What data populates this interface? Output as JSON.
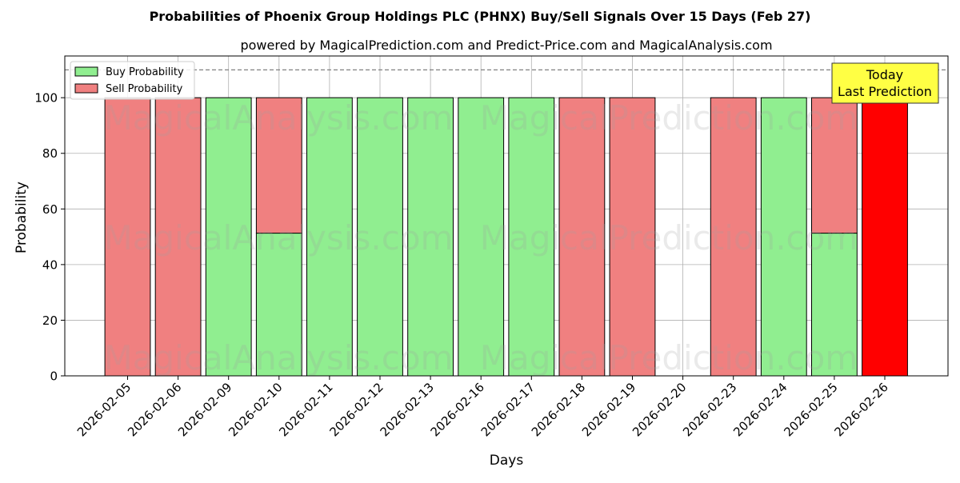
{
  "chart_data": {
    "type": "bar",
    "stacked": true,
    "title": "Probabilities of Phoenix Group Holdings PLC (PHNX) Buy/Sell Signals Over 15 Days (Feb 27)",
    "subtitle": "powered by MagicalPrediction.com and Predict-Price.com and MagicalAnalysis.com",
    "xlabel": "Days",
    "ylabel": "Probability",
    "ylim": [
      0,
      115
    ],
    "yticks": [
      0,
      20,
      40,
      60,
      80,
      100
    ],
    "grid": true,
    "legend_position": "top-left",
    "reference_line": 110,
    "categories": [
      "2026-02-05",
      "2026-02-06",
      "2026-02-09",
      "2026-02-10",
      "2026-02-11",
      "2026-02-12",
      "2026-02-13",
      "2026-02-16",
      "2026-02-17",
      "2026-02-18",
      "2026-02-19",
      "2026-02-20",
      "2026-02-23",
      "2026-02-24",
      "2026-02-25",
      "2026-02-26"
    ],
    "series": [
      {
        "name": "Buy Probability",
        "color": "#90ee90",
        "values": [
          0,
          0,
          100,
          51.3,
          100,
          100,
          100,
          100,
          100,
          0,
          0,
          0,
          0,
          100,
          51.3,
          0
        ]
      },
      {
        "name": "Sell Probability",
        "color": "#f08080",
        "values": [
          100,
          100,
          0,
          48.7,
          0,
          0,
          0,
          0,
          0,
          100,
          100,
          0,
          100,
          0,
          48.7,
          100
        ]
      }
    ],
    "highlight": {
      "category": "2026-02-26",
      "color": "#ff0000"
    },
    "annotation": {
      "line1": "Today",
      "line2": "Last Prediction",
      "background": "#ffff44"
    },
    "watermarks": [
      "MagicalAnalysis.com",
      "MagicalPrediction.com"
    ]
  }
}
